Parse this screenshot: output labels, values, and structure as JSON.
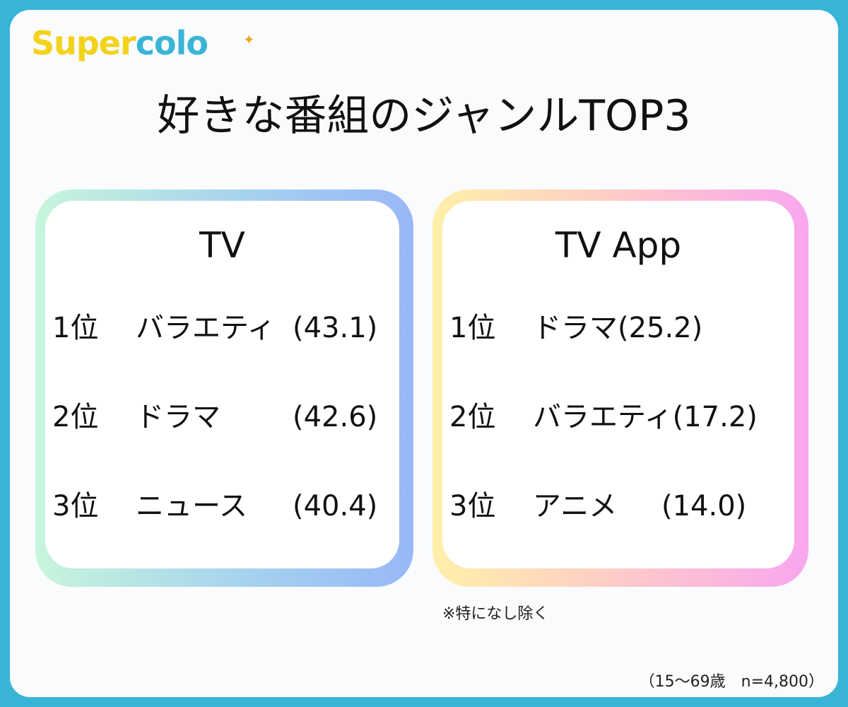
{
  "brand": {
    "logo_part1": "Super",
    "logo_part2": "colo",
    "spark_icon": "sparkle-icon",
    "colors": {
      "yellow": "#f3d21a",
      "blue": "#3ab4d6",
      "orange": "#f0a81e"
    }
  },
  "title": "好きな番組のジャンルTOP3",
  "tv": {
    "heading": "TV",
    "rows": [
      {
        "rank": "1位",
        "genre": "バラエティ",
        "value": "(43.1)"
      },
      {
        "rank": "2位",
        "genre": "ドラマ",
        "value": "(42.6)"
      },
      {
        "rank": "3位",
        "genre": "ニュース",
        "value": "(40.4)"
      }
    ]
  },
  "app": {
    "heading": "TV App",
    "rows": [
      {
        "rank": "1位",
        "genre": "ドラマ",
        "value": "(25.2)"
      },
      {
        "rank": "2位",
        "genre": "バラエティ",
        "value": "(17.2)"
      },
      {
        "rank": "3位",
        "genre": "アニメ",
        "value": "(14.0)"
      }
    ]
  },
  "note": "※特になし除く",
  "footer": "（15〜69歳　n=4,800）"
}
